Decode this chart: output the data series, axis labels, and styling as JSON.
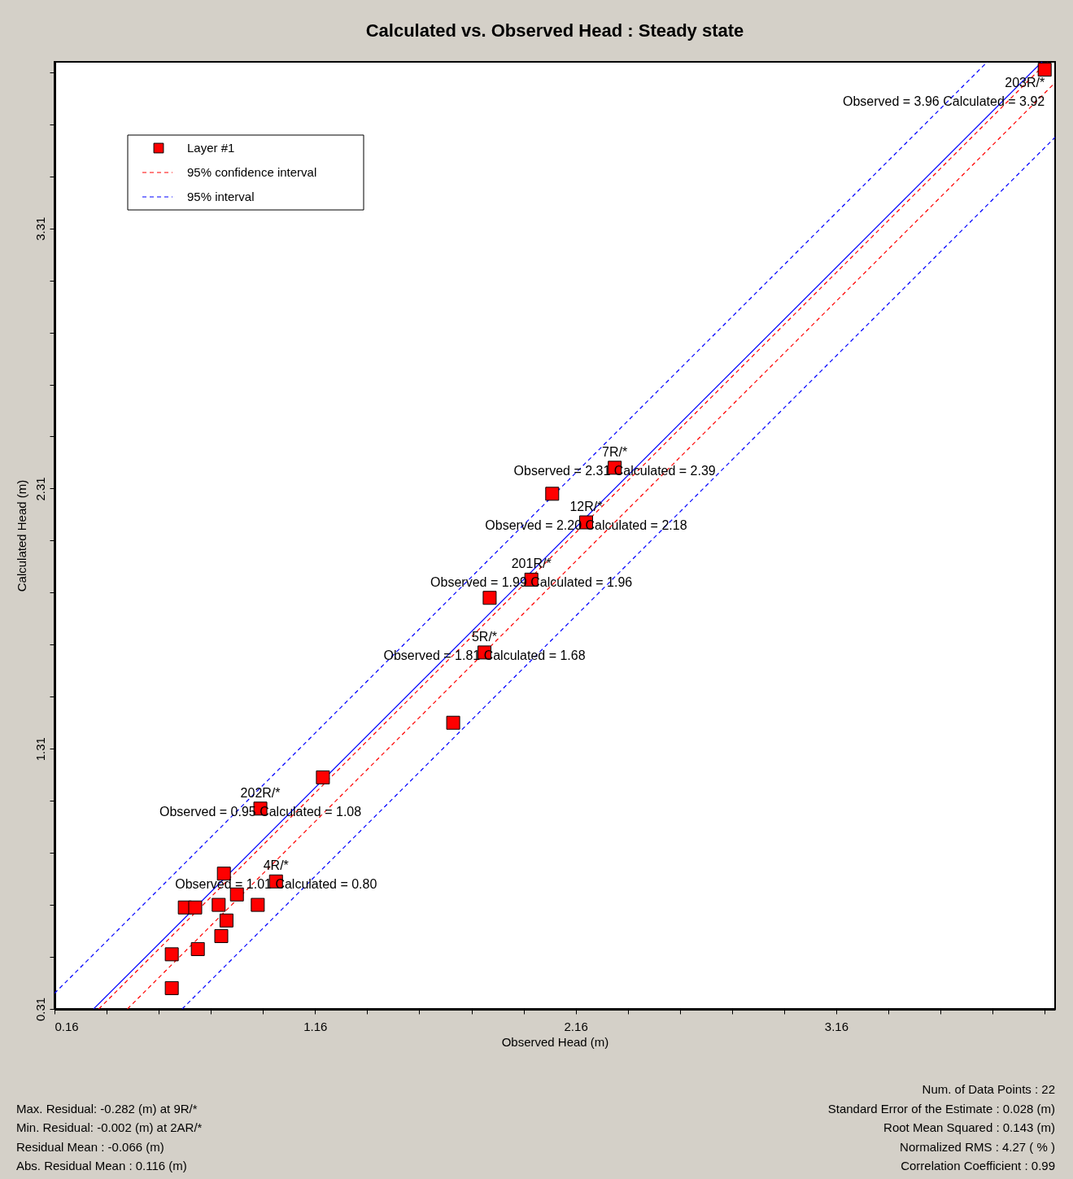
{
  "chart_data": {
    "type": "scatter",
    "title": "Calculated vs. Observed Head : Steady state",
    "xlabel": "Observed Head (m)",
    "ylabel": "Calculated Head (m)",
    "xlim": [
      0.16,
      4.0
    ],
    "ylim": [
      0.31,
      3.95
    ],
    "xticks": [
      0.16,
      {
        "value": 0.36,
        "label": null
      },
      {
        "value": 0.56,
        "label": null
      },
      {
        "value": 0.76,
        "label": null
      },
      {
        "value": 0.96,
        "label": null
      },
      1.16,
      {
        "value": 1.36,
        "label": null
      },
      {
        "value": 1.56,
        "label": null
      },
      {
        "value": 1.76,
        "label": null
      },
      {
        "value": 1.96,
        "label": null
      },
      2.16,
      {
        "value": 2.36,
        "label": null
      },
      {
        "value": 2.56,
        "label": null
      },
      {
        "value": 2.76,
        "label": null
      },
      {
        "value": 2.96,
        "label": null
      },
      3.16,
      {
        "value": 3.36,
        "label": null
      },
      {
        "value": 3.56,
        "label": null
      },
      {
        "value": 3.76,
        "label": null
      },
      {
        "value": 3.96,
        "label": null
      }
    ],
    "yticks": [
      0.31,
      {
        "value": 0.51,
        "label": null
      },
      {
        "value": 0.71,
        "label": null
      },
      {
        "value": 0.91,
        "label": null
      },
      {
        "value": 1.11,
        "label": null
      },
      1.31,
      {
        "value": 1.51,
        "label": null
      },
      {
        "value": 1.71,
        "label": null
      },
      {
        "value": 1.91,
        "label": null
      },
      {
        "value": 2.11,
        "label": null
      },
      2.31,
      {
        "value": 2.51,
        "label": null
      },
      {
        "value": 2.71,
        "label": null
      },
      {
        "value": 2.91,
        "label": null
      },
      {
        "value": 3.11,
        "label": null
      },
      3.31,
      {
        "value": 3.51,
        "label": null
      },
      {
        "value": 3.71,
        "label": null
      },
      {
        "value": 3.91,
        "label": null
      }
    ],
    "grid": false,
    "legend": "top left",
    "series": [
      {
        "name": "Layer #1",
        "marker": "square",
        "color": "#ff0000",
        "x": [
          3.96,
          2.31,
          2.07,
          2.2,
          1.99,
          1.83,
          1.81,
          1.69,
          1.19,
          0.95,
          1.01,
          0.81,
          0.86,
          0.94,
          0.66,
          0.7,
          0.79,
          0.82,
          0.8,
          0.71,
          0.61,
          0.61
        ],
        "values": [
          3.92,
          2.39,
          2.29,
          2.18,
          1.96,
          1.89,
          1.68,
          1.41,
          1.2,
          1.08,
          0.8,
          0.83,
          0.75,
          0.71,
          0.7,
          0.7,
          0.71,
          0.65,
          0.59,
          0.54,
          0.52,
          0.39
        ]
      },
      {
        "type": "line",
        "line_style": "solid",
        "color": "#0000ff",
        "x": [
          0.31,
          3.95
        ],
        "values": [
          0.31,
          3.95
        ]
      },
      {
        "name": "95% confidence interval",
        "type": "line",
        "line_style": "dashed",
        "color": "#ff0000",
        "x": [
          0.33,
          3.97
        ],
        "values": [
          0.31,
          3.95
        ]
      },
      {
        "type": "line",
        "line_style": "dashed",
        "color": "#ff0000",
        "x": [
          0.44,
          4.0
        ],
        "values": [
          0.31,
          3.87
        ]
      },
      {
        "name": "95% interval",
        "type": "line",
        "line_style": "dashed",
        "color": "#0000ff",
        "x": [
          0.16,
          3.74
        ],
        "values": [
          0.37,
          3.95
        ]
      },
      {
        "type": "line",
        "line_style": "dashed",
        "color": "#0000ff",
        "x": [
          0.65,
          4.0
        ],
        "values": [
          0.31,
          3.66
        ]
      }
    ],
    "annotations": [
      {
        "text": "203R/*\nObserved = 3.96 Calculated = 3.92",
        "x": 3.96,
        "y": 3.92
      },
      {
        "text": "7R/*\nObserved = 2.31 Calculated = 2.39",
        "x": 2.31,
        "y": 2.39
      },
      {
        "text": "12R/*\nObserved = 2.20 Calculated = 2.18",
        "x": 2.2,
        "y": 2.18
      },
      {
        "text": "201R/*\nObserved = 1.99 Calculated = 1.96",
        "x": 1.99,
        "y": 1.96
      },
      {
        "text": "5R/*\nObserved = 1.81 Calculated = 1.68",
        "x": 1.81,
        "y": 1.68
      },
      {
        "text": "202R/*\nObserved = 0.95 Calculated = 1.08",
        "x": 0.95,
        "y": 1.08
      },
      {
        "text": "4R/*\nObserved = 1.01 Calculated = 0.80",
        "x": 1.01,
        "y": 0.8
      },
      "Max. Residual: -0.282 (m) at 9R/*",
      "Min. Residual: -0.002 (m) at 2AR/*",
      "Residual Mean : -0.066 (m)",
      "Abs. Residual Mean : 0.116 (m)",
      "Num. of Data Points : 22",
      "Standard Error of the Estimate : 0.028 (m)",
      "Root Mean Squared : 0.143 (m)",
      "Normalized RMS : 4.27 ( % )",
      "Correlation Coefficient : 0.99"
    ]
  }
}
